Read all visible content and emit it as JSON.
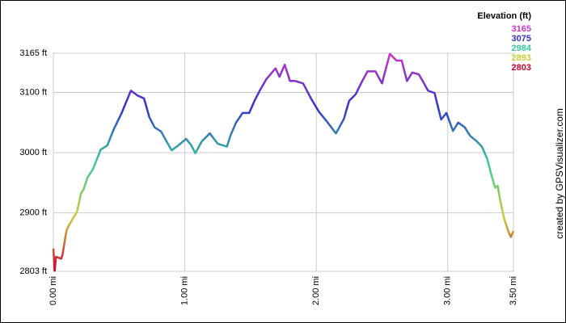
{
  "chart_data": {
    "type": "line",
    "credit": "created by GPSVisualizer.com",
    "legend_title": "Elevation (ft)",
    "color_scale": [
      {
        "value": 3165,
        "color": "#cc33cc"
      },
      {
        "value": 3075,
        "color": "#3333cc"
      },
      {
        "value": 2984,
        "color": "#33cc99"
      },
      {
        "value": 2893,
        "color": "#cccc33"
      },
      {
        "value": 2803,
        "color": "#cc0033"
      }
    ],
    "x": [
      0,
      0.01,
      0.02,
      0.06,
      0.07,
      0.1,
      0.12,
      0.18,
      0.21,
      0.23,
      0.26,
      0.3,
      0.36,
      0.41,
      0.46,
      0.52,
      0.55,
      0.59,
      0.64,
      0.69,
      0.73,
      0.77,
      0.82,
      0.86,
      0.9,
      0.95,
      1.01,
      1.05,
      1.08,
      1.13,
      1.19,
      1.25,
      1.32,
      1.35,
      1.39,
      1.44,
      1.49,
      1.53,
      1.57,
      1.62,
      1.69,
      1.72,
      1.76,
      1.8,
      1.84,
      1.9,
      1.96,
      2.02,
      2.08,
      2.15,
      2.21,
      2.25,
      2.3,
      2.35,
      2.39,
      2.45,
      2.5,
      2.53,
      2.56,
      2.61,
      2.65,
      2.69,
      2.73,
      2.78,
      2.81,
      2.85,
      2.9,
      2.95,
      2.99,
      3.04,
      3.08,
      3.13,
      3.17,
      3.22,
      3.26,
      3.3,
      3.33,
      3.36,
      3.38,
      3.4,
      3.43,
      3.46,
      3.48,
      3.5
    ],
    "series": [
      {
        "name": "Elevation",
        "values": [
          2841,
          2804,
          2827,
          2824,
          2831,
          2871,
          2880,
          2902,
          2932,
          2939,
          2959,
          2972,
          3005,
          3012,
          3039,
          3066,
          3082,
          3103,
          3095,
          3090,
          3059,
          3042,
          3035,
          3019,
          3004,
          3012,
          3023,
          3012,
          2999,
          3019,
          3032,
          3015,
          3010,
          3030,
          3050,
          3066,
          3066,
          3086,
          3103,
          3122,
          3140,
          3126,
          3146,
          3119,
          3119,
          3115,
          3090,
          3068,
          3052,
          3032,
          3056,
          3086,
          3097,
          3119,
          3135,
          3135,
          3115,
          3140,
          3164,
          3153,
          3153,
          3119,
          3133,
          3130,
          3119,
          3103,
          3099,
          3055,
          3066,
          3036,
          3050,
          3042,
          3028,
          3019,
          3010,
          2990,
          2965,
          2942,
          2945,
          2920,
          2890,
          2870,
          2860,
          2870
        ]
      }
    ],
    "xlim": [
      0,
      3.5
    ],
    "xticks": [
      {
        "value": 0,
        "label": "0.00 mi"
      },
      {
        "value": 1,
        "label": "1.00 mi"
      },
      {
        "value": 2,
        "label": "2.00 mi"
      },
      {
        "value": 3,
        "label": "3.00 mi"
      },
      {
        "value": 3.5,
        "label": "3.50 mi"
      }
    ],
    "ylim": [
      2803,
      3165
    ],
    "yticks": [
      {
        "value": 2803,
        "label": "2803 ft"
      },
      {
        "value": 2900,
        "label": "2900 ft"
      },
      {
        "value": 3000,
        "label": "3000 ft"
      },
      {
        "value": 3100,
        "label": "3100 ft"
      },
      {
        "value": 3165,
        "label": "3165 ft"
      }
    ],
    "grid": true
  }
}
